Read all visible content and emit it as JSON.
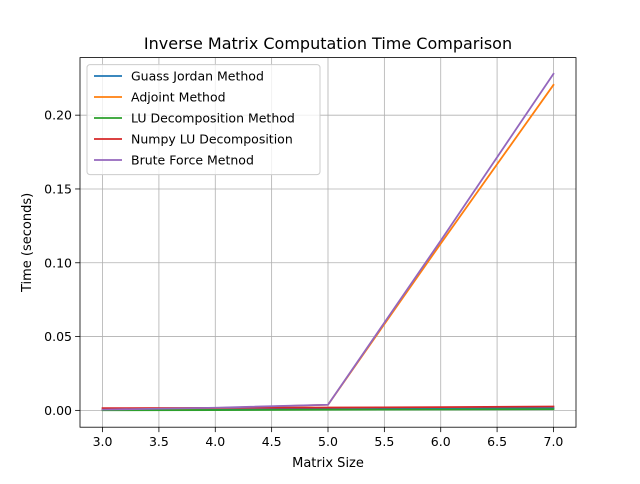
{
  "chart_data": {
    "type": "line",
    "title": "Inverse Matrix Computation Time Comparison",
    "xlabel": "Matrix Size",
    "ylabel": "Time (seconds)",
    "xlim": [
      2.8,
      7.2
    ],
    "ylim": [
      -0.0114,
      0.239
    ],
    "xticks": [
      3.0,
      3.5,
      4.0,
      4.5,
      5.0,
      5.5,
      6.0,
      6.5,
      7.0
    ],
    "xtick_labels": [
      "3.0",
      "3.5",
      "4.0",
      "4.5",
      "5.0",
      "5.5",
      "6.0",
      "6.5",
      "7.0"
    ],
    "yticks": [
      0.0,
      0.05,
      0.1,
      0.15,
      0.2
    ],
    "ytick_labels": [
      "0.00",
      "0.05",
      "0.10",
      "0.15",
      "0.20"
    ],
    "grid": true,
    "legend_position": "top-left",
    "x": [
      3,
      4,
      5,
      6,
      7
    ],
    "series": [
      {
        "name": "Guass Jordan Method",
        "color": "#1f77b4",
        "values": [
          0.0002,
          0.0005,
          0.0008,
          0.0012,
          0.0016
        ]
      },
      {
        "name": "Adjoint Method",
        "color": "#ff7f0e",
        "values": [
          0.0003,
          0.0015,
          0.0038,
          0.113,
          0.2205
        ]
      },
      {
        "name": "LU Decomposition Method",
        "color": "#2ca02c",
        "values": [
          0.0001,
          0.0002,
          0.0004,
          0.0006,
          0.0008
        ]
      },
      {
        "name": "Numpy LU Decomposition",
        "color": "#d62728",
        "values": [
          0.0015,
          0.0017,
          0.0019,
          0.0022,
          0.0026
        ]
      },
      {
        "name": "Brute Force Metnod",
        "color": "#9467bd",
        "values": [
          0.0005,
          0.0018,
          0.0038,
          0.115,
          0.228
        ]
      }
    ]
  }
}
